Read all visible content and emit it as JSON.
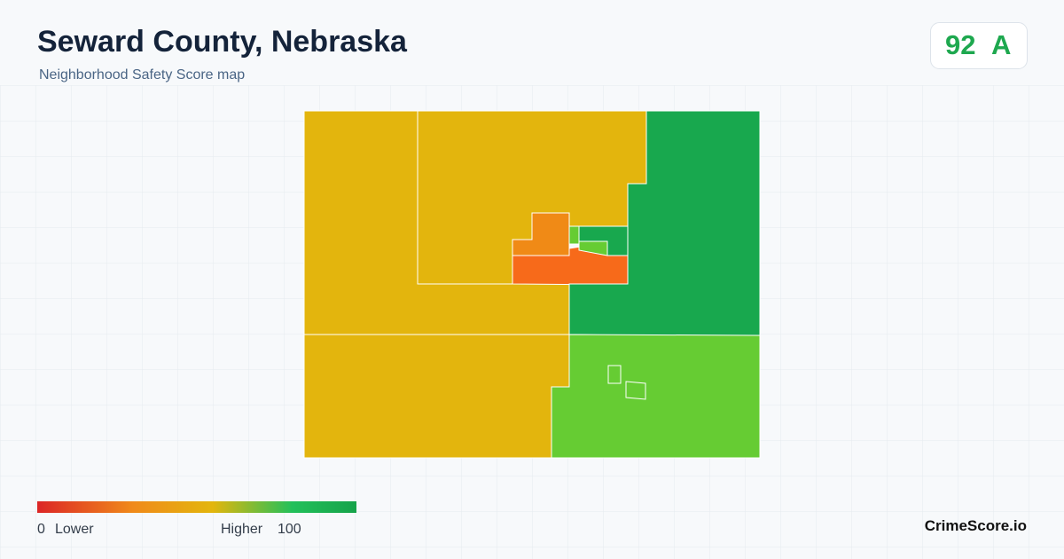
{
  "header": {
    "title": "Seward County, Nebraska",
    "subtitle": "Neighborhood Safety Score map"
  },
  "score": {
    "value": 92,
    "grade": "A"
  },
  "legend": {
    "min": 0,
    "min_label": "Lower",
    "max_label": "Higher",
    "max": 100
  },
  "brand": "CrimeScore.io"
}
